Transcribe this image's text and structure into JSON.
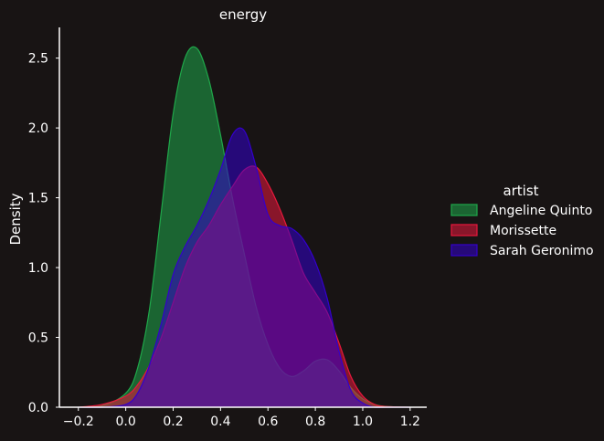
{
  "chart_data": {
    "type": "area",
    "title": "energy",
    "xlabel": "",
    "ylabel": "Density",
    "xlim": [
      -0.28,
      1.27
    ],
    "ylim": [
      0,
      2.72
    ],
    "xticks": [
      "−0.2",
      "0.0",
      "0.2",
      "0.4",
      "0.6",
      "0.8",
      "1.0",
      "1.2"
    ],
    "xtick_values": [
      -0.2,
      0.0,
      0.2,
      0.4,
      0.6,
      0.8,
      1.0,
      1.2
    ],
    "yticks": [
      "0.0",
      "0.5",
      "1.0",
      "1.5",
      "2.0",
      "2.5"
    ],
    "ytick_values": [
      0.0,
      0.5,
      1.0,
      1.5,
      2.0,
      2.5
    ],
    "grid": false,
    "legend": {
      "title": "artist",
      "placement": "right"
    },
    "series": [
      {
        "name": "Angeline Quinto",
        "color": "#1fa84a",
        "x": [
          -0.2,
          -0.1,
          0.0,
          0.05,
          0.1,
          0.15,
          0.2,
          0.25,
          0.3,
          0.35,
          0.4,
          0.45,
          0.5,
          0.55,
          0.6,
          0.65,
          0.7,
          0.75,
          0.8,
          0.85,
          0.9,
          0.95,
          1.0,
          1.05,
          1.1,
          1.2
        ],
        "y": [
          0.0,
          0.01,
          0.1,
          0.28,
          0.7,
          1.4,
          2.1,
          2.5,
          2.57,
          2.35,
          1.95,
          1.5,
          1.1,
          0.72,
          0.45,
          0.28,
          0.22,
          0.26,
          0.33,
          0.34,
          0.26,
          0.14,
          0.06,
          0.02,
          0.005,
          0.0
        ]
      },
      {
        "name": "Morissette",
        "color": "#e8183c",
        "x": [
          -0.2,
          -0.1,
          0.0,
          0.05,
          0.1,
          0.15,
          0.2,
          0.25,
          0.3,
          0.35,
          0.4,
          0.45,
          0.5,
          0.55,
          0.6,
          0.65,
          0.7,
          0.75,
          0.8,
          0.85,
          0.9,
          0.95,
          1.0,
          1.05,
          1.1,
          1.2
        ],
        "y": [
          0.0,
          0.02,
          0.08,
          0.16,
          0.3,
          0.5,
          0.75,
          1.0,
          1.18,
          1.3,
          1.45,
          1.58,
          1.7,
          1.72,
          1.6,
          1.42,
          1.2,
          0.96,
          0.82,
          0.68,
          0.46,
          0.22,
          0.08,
          0.02,
          0.005,
          0.0
        ]
      },
      {
        "name": "Sarah Geronimo",
        "color": "#3300cc",
        "x": [
          -0.2,
          -0.1,
          0.0,
          0.05,
          0.1,
          0.15,
          0.2,
          0.25,
          0.3,
          0.35,
          0.4,
          0.45,
          0.5,
          0.55,
          0.6,
          0.65,
          0.7,
          0.75,
          0.8,
          0.85,
          0.9,
          0.95,
          1.0,
          1.05,
          1.1,
          1.2
        ],
        "y": [
          0.0,
          0.0,
          0.02,
          0.1,
          0.3,
          0.6,
          0.95,
          1.15,
          1.3,
          1.48,
          1.7,
          1.95,
          1.98,
          1.72,
          1.38,
          1.3,
          1.28,
          1.2,
          1.04,
          0.78,
          0.4,
          0.12,
          0.03,
          0.0,
          0.0,
          0.0
        ]
      }
    ]
  }
}
